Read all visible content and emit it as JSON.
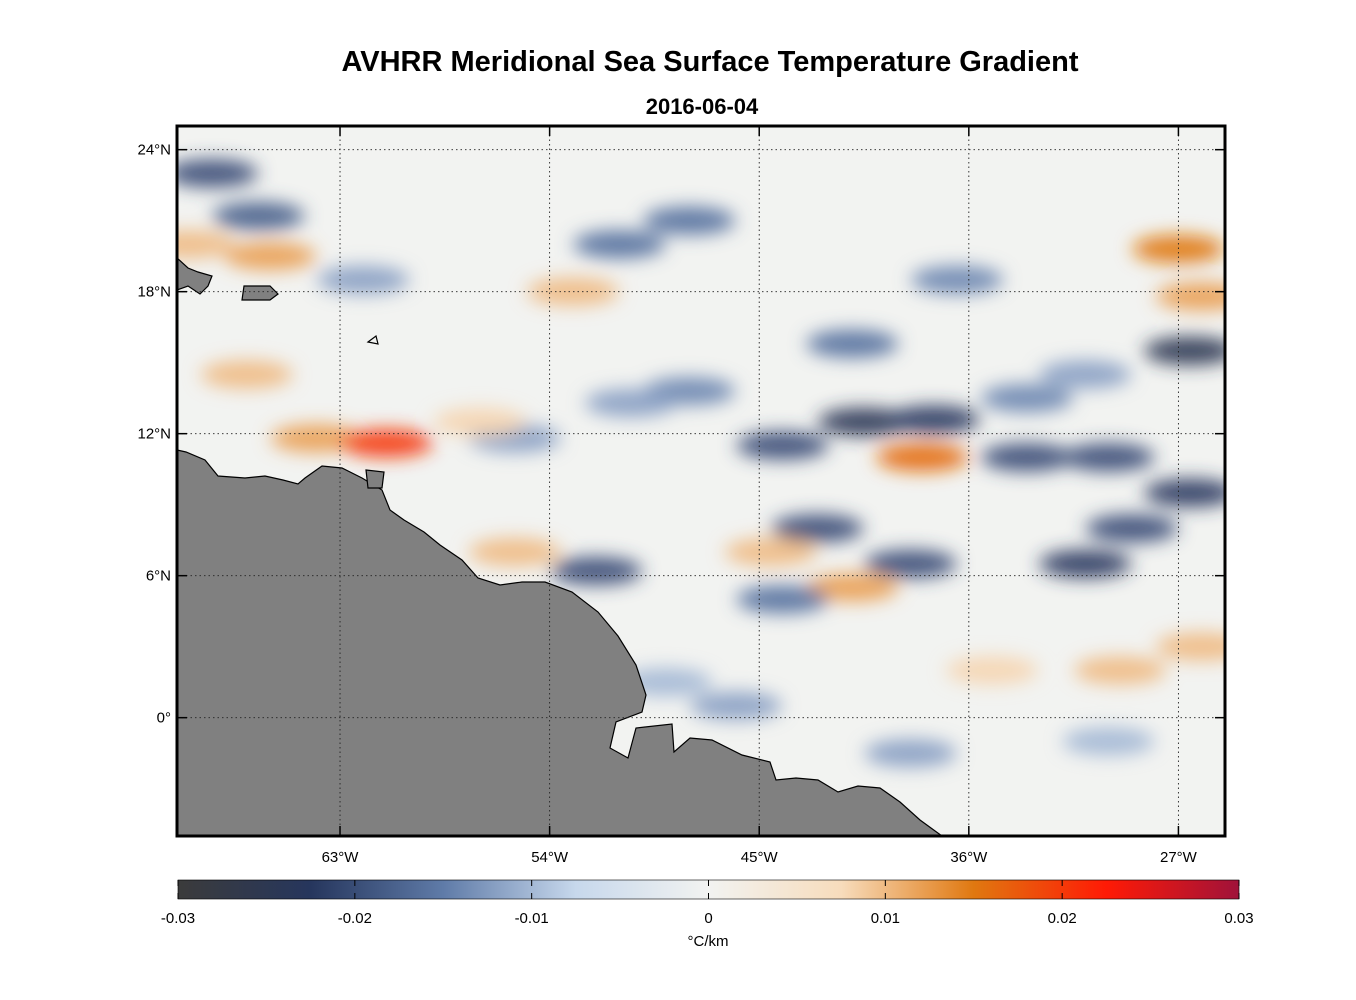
{
  "chart_data": {
    "type": "heatmap",
    "title": "AVHRR Meridional Sea Surface Temperature Gradient",
    "subtitle": "2016-06-04",
    "map": {
      "lon_range": [
        -70,
        -25
      ],
      "lat_range": [
        -5,
        25
      ],
      "lon_ticks": [
        -63,
        -54,
        -45,
        -36,
        -27
      ],
      "lon_tick_labels": [
        "63°W",
        "54°W",
        "45°W",
        "36°W",
        "27°W"
      ],
      "lat_ticks": [
        24,
        18,
        12,
        6,
        0
      ],
      "lat_tick_labels": [
        "24°N",
        "18°N",
        "12°N",
        "6°N",
        "0°"
      ],
      "grid": "dotted",
      "land_color": "#808080"
    },
    "colorbar": {
      "range": [
        -0.03,
        0.03
      ],
      "ticks": [
        -0.03,
        -0.02,
        -0.01,
        0,
        0.01,
        0.02,
        0.03
      ],
      "tick_labels": [
        "-0.03",
        "-0.02",
        "-0.01",
        "0",
        "0.01",
        "0.02",
        "0.03"
      ],
      "label": "°C/km",
      "colors": [
        "#3b3b3b",
        "#26365d",
        "#5f7ba8",
        "#c7d8ec",
        "#f2f3f1",
        "#f7dcbc",
        "#e07810",
        "#ff1a05",
        "#a0123a"
      ]
    },
    "features": [
      {
        "lon": -66.5,
        "lat": 21.2,
        "value": -0.018
      },
      {
        "lon": -68.5,
        "lat": 23.0,
        "value": -0.02
      },
      {
        "lon": -66.0,
        "lat": 19.5,
        "value": 0.012
      },
      {
        "lon": -69.5,
        "lat": 20.0,
        "value": 0.01
      },
      {
        "lon": -64.0,
        "lat": 11.8,
        "value": 0.012
      },
      {
        "lon": -61.0,
        "lat": 11.6,
        "value": 0.02
      },
      {
        "lon": -62.0,
        "lat": 18.5,
        "value": -0.012
      },
      {
        "lon": -67.0,
        "lat": 14.5,
        "value": 0.01
      },
      {
        "lon": -53.0,
        "lat": 18.0,
        "value": 0.01
      },
      {
        "lon": -52.0,
        "lat": 6.2,
        "value": -0.02
      },
      {
        "lon": -55.5,
        "lat": 7.0,
        "value": 0.01
      },
      {
        "lon": -48.0,
        "lat": 21.0,
        "value": -0.016
      },
      {
        "lon": -51.0,
        "lat": 20.0,
        "value": -0.016
      },
      {
        "lon": -44.0,
        "lat": 11.5,
        "value": -0.02
      },
      {
        "lon": -40.5,
        "lat": 12.5,
        "value": -0.024
      },
      {
        "lon": -37.5,
        "lat": 12.6,
        "value": -0.022
      },
      {
        "lon": -38.0,
        "lat": 11.0,
        "value": 0.016
      },
      {
        "lon": -42.5,
        "lat": 8.0,
        "value": -0.02
      },
      {
        "lon": -38.5,
        "lat": 6.5,
        "value": -0.02
      },
      {
        "lon": -44.5,
        "lat": 7.0,
        "value": 0.01
      },
      {
        "lon": -41.0,
        "lat": 5.5,
        "value": 0.012
      },
      {
        "lon": -44.0,
        "lat": 5.0,
        "value": -0.016
      },
      {
        "lon": -31.0,
        "lat": 6.5,
        "value": -0.022
      },
      {
        "lon": -33.5,
        "lat": 11.0,
        "value": -0.02
      },
      {
        "lon": -30.0,
        "lat": 11.0,
        "value": -0.02
      },
      {
        "lon": -26.5,
        "lat": 15.5,
        "value": -0.025
      },
      {
        "lon": -26.5,
        "lat": 9.5,
        "value": -0.022
      },
      {
        "lon": -29.0,
        "lat": 8.0,
        "value": -0.02
      },
      {
        "lon": -29.5,
        "lat": 2.0,
        "value": 0.01
      },
      {
        "lon": -26.0,
        "lat": 3.0,
        "value": 0.01
      },
      {
        "lon": -27.0,
        "lat": 19.8,
        "value": 0.015
      },
      {
        "lon": -26.0,
        "lat": 17.8,
        "value": 0.012
      },
      {
        "lon": -41.0,
        "lat": 15.8,
        "value": -0.016
      },
      {
        "lon": -36.5,
        "lat": 18.5,
        "value": -0.014
      },
      {
        "lon": -33.5,
        "lat": 13.5,
        "value": -0.014
      },
      {
        "lon": -31.0,
        "lat": 14.5,
        "value": -0.012
      },
      {
        "lon": -35.0,
        "lat": 2.0,
        "value": 0.008
      },
      {
        "lon": -38.5,
        "lat": -1.5,
        "value": -0.012
      },
      {
        "lon": -30.0,
        "lat": -1.0,
        "value": -0.01
      },
      {
        "lon": -48.0,
        "lat": 13.8,
        "value": -0.014
      },
      {
        "lon": -50.5,
        "lat": 13.3,
        "value": -0.012
      },
      {
        "lon": -55.5,
        "lat": 11.8,
        "value": -0.012
      },
      {
        "lon": -46.0,
        "lat": 0.5,
        "value": -0.012
      },
      {
        "lon": -49.0,
        "lat": 1.5,
        "value": -0.01
      },
      {
        "lon": -57.0,
        "lat": 12.5,
        "value": 0.008
      }
    ]
  }
}
